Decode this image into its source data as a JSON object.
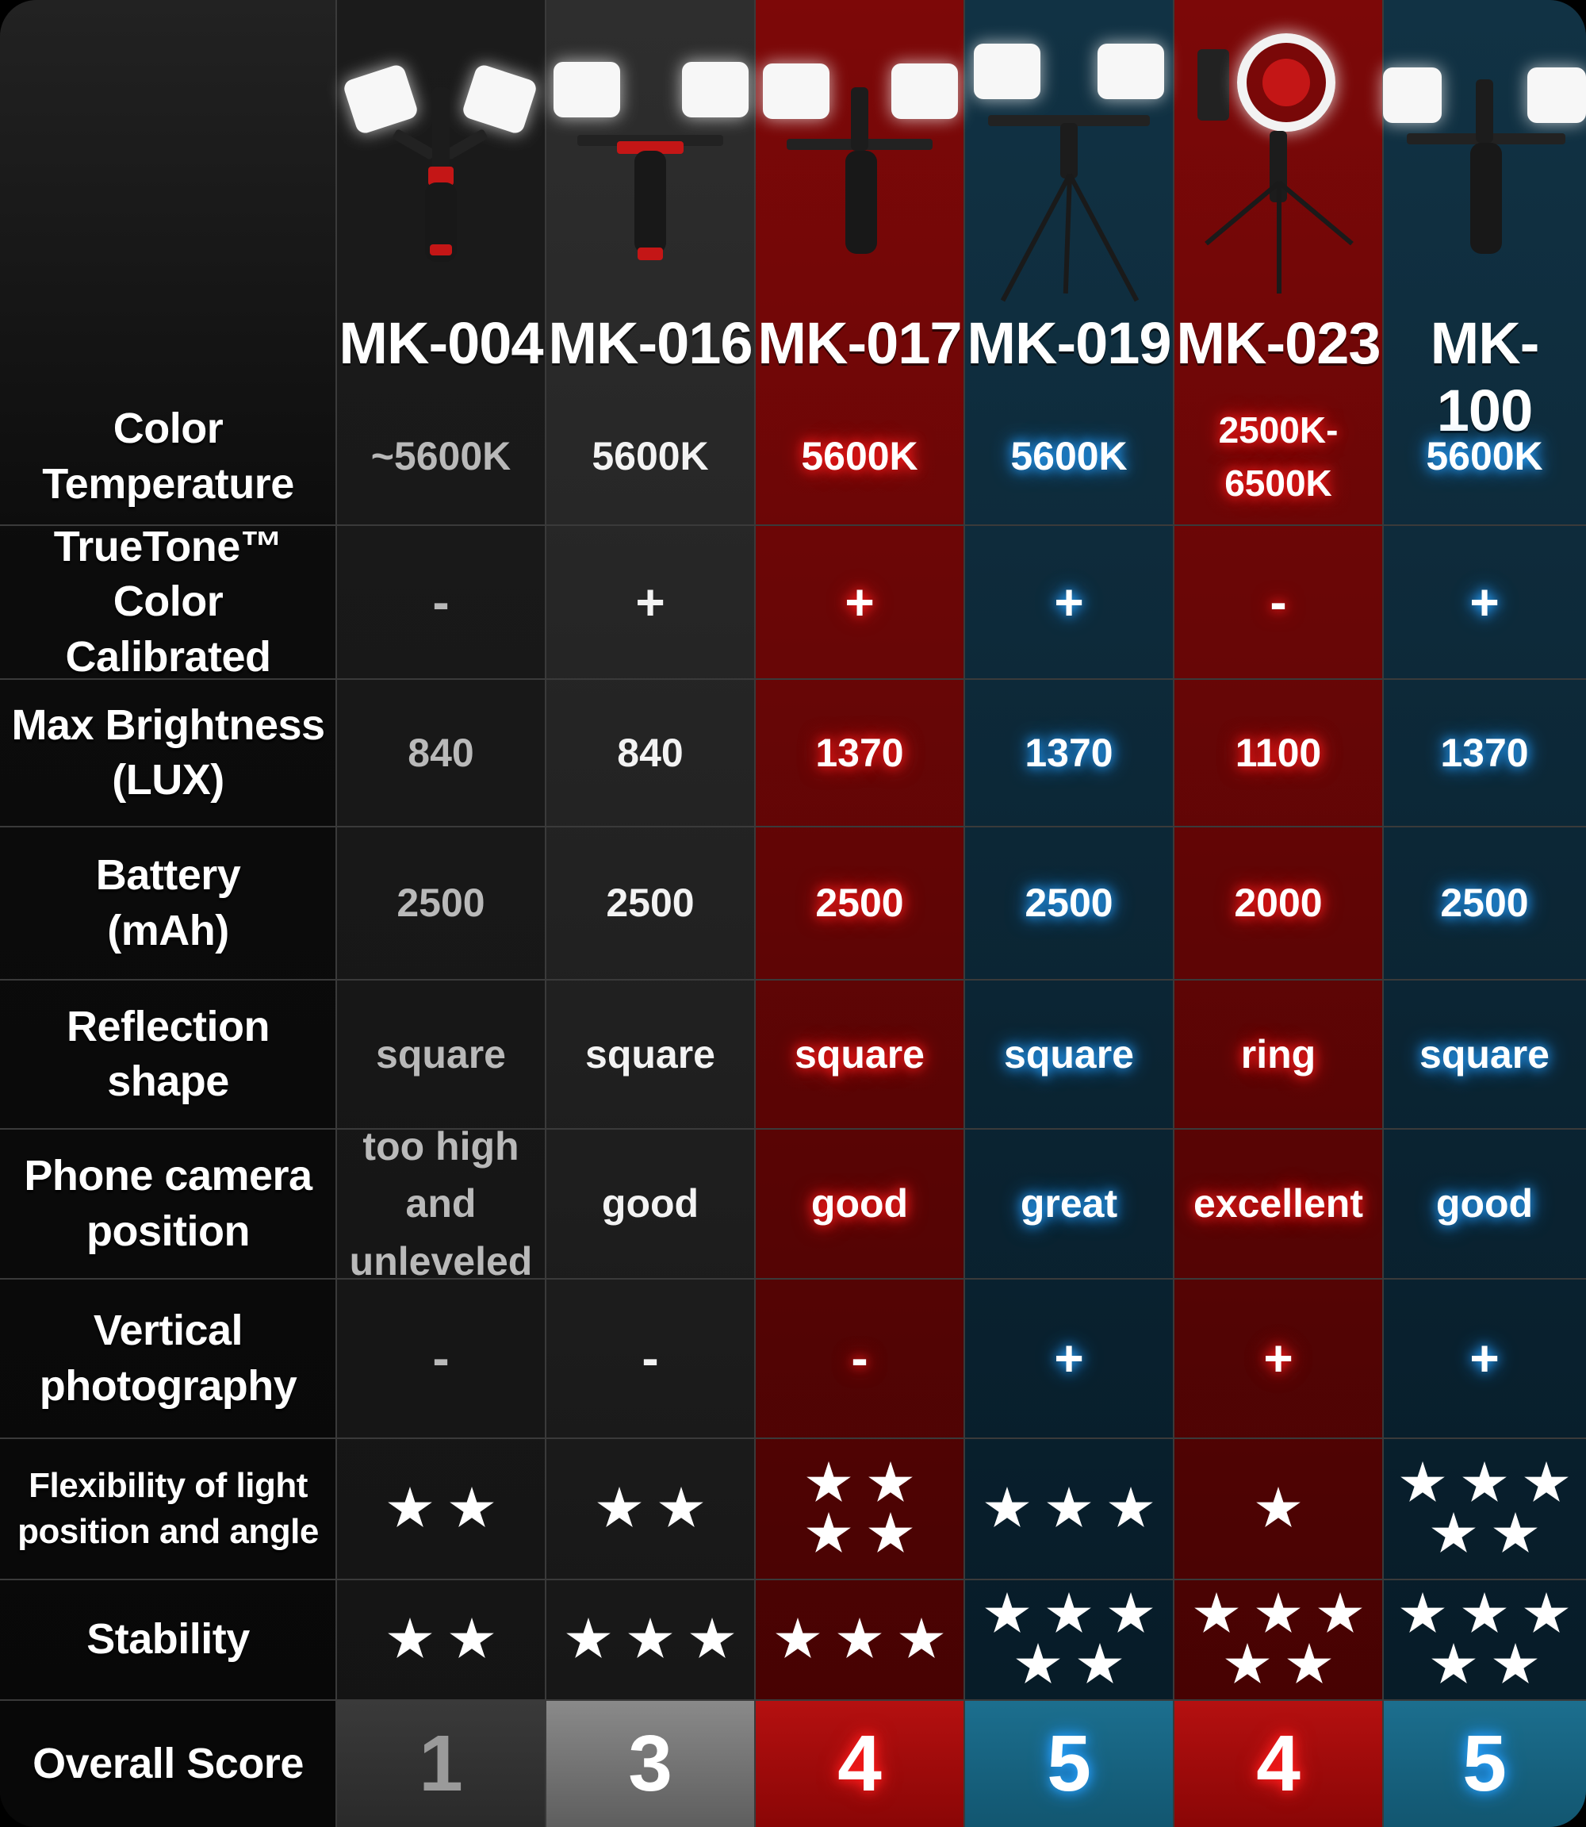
{
  "models": [
    "MK-004",
    "MK-016",
    "MK-017",
    "MK-019",
    "MK-023",
    "MK-100"
  ],
  "rows": {
    "color_temperature": {
      "label": "Color Temperature",
      "values": [
        "~5600K",
        "5600K",
        "5600K",
        "5600K",
        "2500K-6500K",
        "5600K"
      ]
    },
    "truetone": {
      "label": "TrueTone™ Color Calibrated",
      "values": [
        "-",
        "+",
        "+",
        "+",
        "-",
        "+"
      ]
    },
    "max_brightness": {
      "label": "Max Brightness (LUX)",
      "values": [
        "840",
        "840",
        "1370",
        "1370",
        "1100",
        "1370"
      ]
    },
    "battery": {
      "label": "Battery (mAh)",
      "values": [
        "2500",
        "2500",
        "2500",
        "2500",
        "2000",
        "2500"
      ]
    },
    "reflection_shape": {
      "label": "Reflection shape",
      "values": [
        "square",
        "square",
        "square",
        "square",
        "ring",
        "square"
      ]
    },
    "phone_camera_position": {
      "label": "Phone camera position",
      "values": [
        "too high and unleveled",
        "good",
        "good",
        "great",
        "excellent",
        "good"
      ]
    },
    "vertical_photography": {
      "label": "Vertical photography",
      "values": [
        "-",
        "-",
        "-",
        "+",
        "+",
        "+"
      ]
    },
    "flexibility": {
      "label": "Flexibility of light position and angle",
      "stars": [
        2,
        2,
        4,
        3,
        1,
        5
      ]
    },
    "stability": {
      "label": "Stability",
      "stars": [
        2,
        3,
        3,
        5,
        5,
        5
      ]
    },
    "overall_score": {
      "label": "Overall Score",
      "values": [
        "1",
        "3",
        "4",
        "5",
        "4",
        "5"
      ]
    }
  },
  "colors": {
    "red_glow": "#ff2020",
    "blue_glow": "#2aa6ff",
    "red_column": "#7d0808",
    "blue_column": "#113244"
  },
  "icons": {
    "rating": "star-icon"
  }
}
